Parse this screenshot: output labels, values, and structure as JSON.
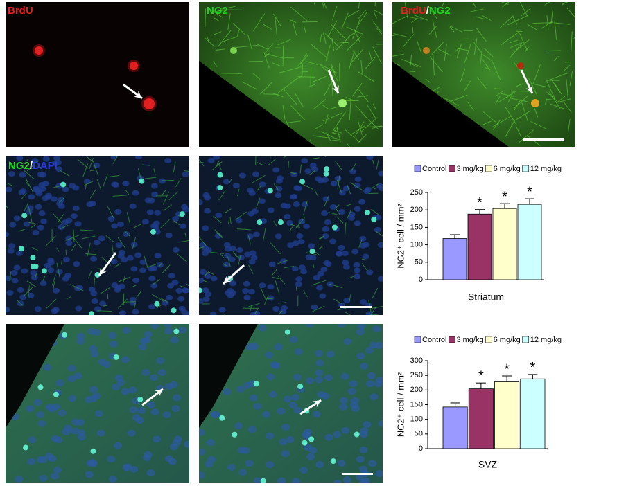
{
  "figure": {
    "panels": [
      {
        "label": [
          "BrdU"
        ],
        "colors": [
          "#e0201c"
        ]
      },
      {
        "label": [
          "NG2"
        ],
        "colors": [
          "#22d322"
        ]
      },
      {
        "label": [
          "BrdU",
          "/",
          "NG2"
        ],
        "colors": [
          "#e0201c",
          "#ffffff",
          "#22d322"
        ]
      },
      {
        "label": [
          "NG2",
          "/",
          "DAPI"
        ],
        "colors": [
          "#22d322",
          "#ffffff",
          "#2a3bd8"
        ]
      }
    ]
  },
  "chart_data": [
    {
      "type": "bar",
      "xlabel": "Striatum",
      "ylabel": "NG2⁺ cell / mm²",
      "ylim": [
        0,
        250
      ],
      "yticks": [
        0,
        50,
        100,
        150,
        200,
        250
      ],
      "series": [
        {
          "name": "Control",
          "color": "#9999ff",
          "values": [
            118
          ],
          "errors": [
            11
          ],
          "labels": [
            null
          ]
        },
        {
          "name": "3 mg/kg",
          "color": "#993366",
          "values": [
            188
          ],
          "errors": [
            13
          ],
          "labels": [
            "*"
          ]
        },
        {
          "name": "6 mg/kg",
          "color": "#ffffcc",
          "values": [
            204
          ],
          "errors": [
            14
          ],
          "labels": [
            "*"
          ]
        },
        {
          "name": "12 mg/kg",
          "color": "#ccffff",
          "values": [
            216
          ],
          "errors": [
            16
          ],
          "labels": [
            "*"
          ]
        }
      ]
    },
    {
      "type": "bar",
      "xlabel": "SVZ",
      "ylabel": "NG2⁺ cell / mm²",
      "ylim": [
        0,
        300
      ],
      "yticks": [
        0,
        50,
        100,
        150,
        200,
        250,
        300
      ],
      "series": [
        {
          "name": "Control",
          "color": "#9999ff",
          "values": [
            142
          ],
          "errors": [
            14
          ],
          "labels": [
            null
          ]
        },
        {
          "name": "3 mg/kg",
          "color": "#993366",
          "values": [
            204
          ],
          "errors": [
            20
          ],
          "labels": [
            "*"
          ]
        },
        {
          "name": "6 mg/kg",
          "color": "#ffffcc",
          "values": [
            228
          ],
          "errors": [
            20
          ],
          "labels": [
            "*"
          ]
        },
        {
          "name": "12 mg/kg",
          "color": "#ccffff",
          "values": [
            238
          ],
          "errors": [
            15
          ],
          "labels": [
            "*"
          ]
        }
      ]
    }
  ]
}
